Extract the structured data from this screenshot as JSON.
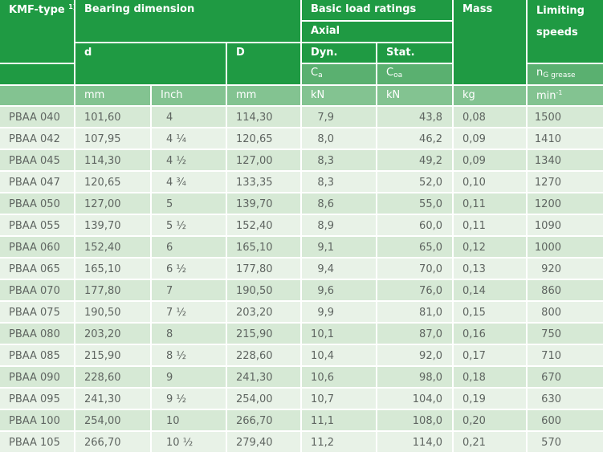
{
  "header": {
    "kmf_type": "KMF-type",
    "kmf_sup": "1)",
    "bearing_dimension": "Bearing dimension",
    "basic_load_ratings": "Basic load ratings",
    "axial": "Axial",
    "mass": "Mass",
    "limiting_line1": "Limiting",
    "limiting_line2": "speeds",
    "d": "d",
    "D": "D",
    "dyn": "Dyn.",
    "stat": "Stat.",
    "ca_main": "C",
    "ca_sub": "a",
    "coa_main": "C",
    "coa_sub": "oa",
    "ng_main": "n",
    "ng_sub": "G grease"
  },
  "units": {
    "d_mm": "mm",
    "d_inch": "Inch",
    "D_mm": "mm",
    "dyn": "kN",
    "stat": "kN",
    "mass": "kg",
    "speed_main": "min",
    "speed_sup": "-1"
  },
  "rows": [
    {
      "type": "PBAA  040",
      "d_mm": "101,60",
      "d_inch": "4",
      "D_mm": "114,30",
      "dyn": "7,9",
      "stat": "43,8",
      "mass": "0,08",
      "speed": "1500"
    },
    {
      "type": "PBAA  042",
      "d_mm": "107,95",
      "d_inch": "4 ¼",
      "D_mm": "120,65",
      "dyn": "8,0",
      "stat": "46,2",
      "mass": "0,09",
      "speed": "1410"
    },
    {
      "type": "PBAA  045",
      "d_mm": "114,30",
      "d_inch": "4 ½",
      "D_mm": "127,00",
      "dyn": "8,3",
      "stat": "49,2",
      "mass": "0,09",
      "speed": "1340"
    },
    {
      "type": "PBAA  047",
      "d_mm": "120,65",
      "d_inch": "4 ¾",
      "D_mm": "133,35",
      "dyn": "8,3",
      "stat": "52,0",
      "mass": "0,10",
      "speed": "1270"
    },
    {
      "type": "PBAA  050",
      "d_mm": "127,00",
      "d_inch": "5",
      "D_mm": "139,70",
      "dyn": "8,6",
      "stat": "55,0",
      "mass": "0,11",
      "speed": "1200"
    },
    {
      "type": "PBAA  055",
      "d_mm": "139,70",
      "d_inch": "5 ½",
      "D_mm": "152,40",
      "dyn": "8,9",
      "stat": "60,0",
      "mass": "0,11",
      "speed": "1090"
    },
    {
      "type": "PBAA  060",
      "d_mm": "152,40",
      "d_inch": "6",
      "D_mm": "165,10",
      "dyn": "9,1",
      "stat": "65,0",
      "mass": "0,12",
      "speed": "1000"
    },
    {
      "type": "PBAA  065",
      "d_mm": "165,10",
      "d_inch": "6 ½",
      "D_mm": "177,80",
      "dyn": "9,4",
      "stat": "70,0",
      "mass": "0,13",
      "speed": "920"
    },
    {
      "type": "PBAA  070",
      "d_mm": "177,80",
      "d_inch": "7",
      "D_mm": "190,50",
      "dyn": "9,6",
      "stat": "76,0",
      "mass": "0,14",
      "speed": "860"
    },
    {
      "type": "PBAA  075",
      "d_mm": "190,50",
      "d_inch": "7 ½",
      "D_mm": "203,20",
      "dyn": "9,9",
      "stat": "81,0",
      "mass": "0,15",
      "speed": "800"
    },
    {
      "type": "PBAA  080",
      "d_mm": "203,20",
      "d_inch": "8",
      "D_mm": "215,90",
      "dyn": "10,1",
      "stat": "87,0",
      "mass": "0,16",
      "speed": "750"
    },
    {
      "type": "PBAA  085",
      "d_mm": "215,90",
      "d_inch": "8 ½",
      "D_mm": "228,60",
      "dyn": "10,4",
      "stat": "92,0",
      "mass": "0,17",
      "speed": "710"
    },
    {
      "type": "PBAA  090",
      "d_mm": "228,60",
      "d_inch": "9",
      "D_mm": "241,30",
      "dyn": "10,6",
      "stat": "98,0",
      "mass": "0,18",
      "speed": "670"
    },
    {
      "type": "PBAA  095",
      "d_mm": "241,30",
      "d_inch": "9 ½",
      "D_mm": "254,00",
      "dyn": "10,7",
      "stat": "104,0",
      "mass": "0,19",
      "speed": "630"
    },
    {
      "type": "PBAA  100",
      "d_mm": "254,00",
      "d_inch": "10",
      "D_mm": "266,70",
      "dyn": "11,1",
      "stat": "108,0",
      "mass": "0,20",
      "speed": "600"
    },
    {
      "type": "PBAA  105",
      "d_mm": "266,70",
      "d_inch": "10 ½",
      "D_mm": "279,40",
      "dyn": "11,2",
      "stat": "114,0",
      "mass": "0,21",
      "speed": "570"
    }
  ],
  "colors": {
    "header_green": "#1f9a43",
    "subheader_green": "#5ab070",
    "unit_row_green": "#83c391",
    "row_odd": "#d6e9d5",
    "row_even": "#e8f2e7",
    "body_text": "#5f6561"
  }
}
